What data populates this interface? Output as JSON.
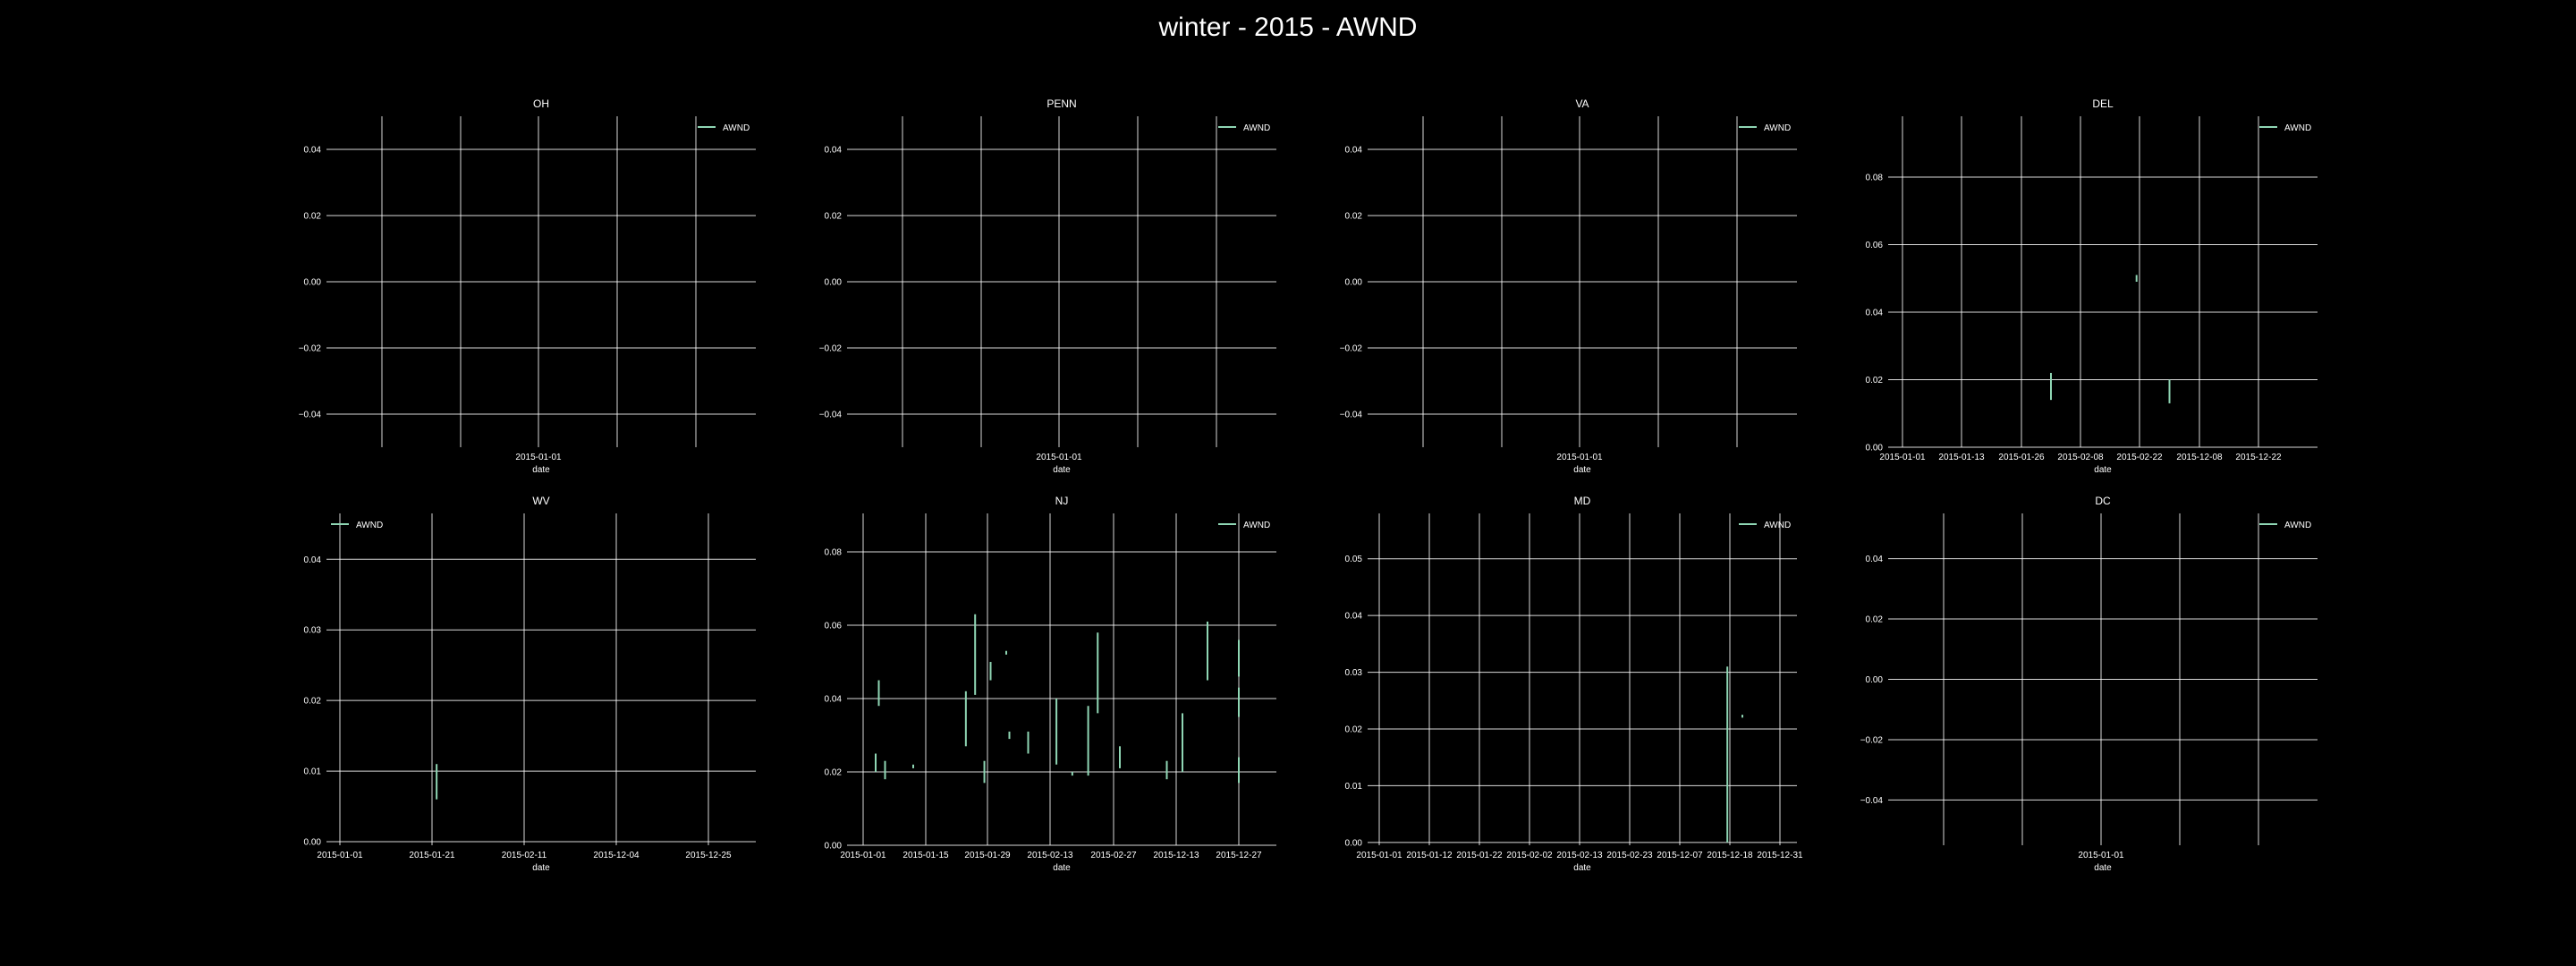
{
  "figure": {
    "title": "winter - 2015 - AWND",
    "background": "#000000",
    "grid_color": "#ffffff",
    "series_color": "#8fd6b4"
  },
  "chart_data": [
    {
      "title": "OH",
      "type": "line",
      "xlabel": "date",
      "ylabel": "",
      "x_ticks": [
        "2015-01-01"
      ],
      "y_ticks": [
        "0.04",
        "0.02",
        "0.00",
        "−0.02",
        "−0.04"
      ],
      "ylim": [
        -0.05,
        0.05
      ],
      "grid": true,
      "legend": "top-right",
      "series": [
        {
          "name": "AWND",
          "segments": []
        }
      ]
    },
    {
      "title": "PENN",
      "type": "line",
      "xlabel": "date",
      "ylabel": "",
      "x_ticks": [
        "2015-01-01"
      ],
      "y_ticks": [
        "0.04",
        "0.02",
        "0.00",
        "−0.02",
        "−0.04"
      ],
      "ylim": [
        -0.05,
        0.05
      ],
      "grid": true,
      "legend": "top-right",
      "series": [
        {
          "name": "AWND",
          "segments": []
        }
      ]
    },
    {
      "title": "VA",
      "type": "line",
      "xlabel": "date",
      "ylabel": "",
      "x_ticks": [
        "2015-01-01"
      ],
      "y_ticks": [
        "0.04",
        "0.02",
        "0.00",
        "−0.02",
        "−0.04"
      ],
      "ylim": [
        -0.05,
        0.05
      ],
      "grid": true,
      "legend": "top-right",
      "series": [
        {
          "name": "AWND",
          "segments": []
        }
      ]
    },
    {
      "title": "DEL",
      "type": "line",
      "xlabel": "date",
      "ylabel": "",
      "x_ticks": [
        "2015-01-01",
        "2015-01-13",
        "2015-01-26",
        "2015-02-08",
        "2015-02-22",
        "2015-12-08",
        "2015-12-22"
      ],
      "y_ticks": [
        "0.08",
        "0.06",
        "0.04",
        "0.02",
        "0.00"
      ],
      "ylim": [
        0,
        0.098
      ],
      "grid": true,
      "legend": "top-right",
      "series": [
        {
          "name": "AWND",
          "segments": [
            {
              "x": 2.5,
              "y": [
                0.014,
                0.022
              ]
            },
            {
              "x": 3.95,
              "y": [
                0.049,
                0.051
              ]
            },
            {
              "x": 4.5,
              "y": [
                0.013,
                0.02
              ]
            }
          ]
        }
      ]
    },
    {
      "title": "WV",
      "type": "line",
      "xlabel": "date",
      "ylabel": "",
      "x_ticks": [
        "2015-01-01",
        "2015-01-21",
        "2015-02-11",
        "2015-12-04",
        "2015-12-25"
      ],
      "y_ticks": [
        "0.04",
        "0.03",
        "0.02",
        "0.01",
        "0.00"
      ],
      "ylim": [
        -0.0005,
        0.0465
      ],
      "grid": true,
      "legend": "top-left",
      "series": [
        {
          "name": "AWND",
          "segments": [
            {
              "x": 1.05,
              "y": [
                0.006,
                0.011
              ]
            }
          ]
        }
      ]
    },
    {
      "title": "NJ",
      "type": "line",
      "xlabel": "date",
      "ylabel": "",
      "x_ticks": [
        "2015-01-01",
        "2015-01-15",
        "2015-01-29",
        "2015-02-13",
        "2015-02-27",
        "2015-12-13",
        "2015-12-27"
      ],
      "y_ticks": [
        "0.08",
        "0.06",
        "0.04",
        "0.02",
        "0.00"
      ],
      "ylim": [
        0,
        0.0905
      ],
      "grid": true,
      "legend": "top-right",
      "series": [
        {
          "name": "AWND",
          "segments": [
            {
              "x": 0.2,
              "y": [
                0.02,
                0.025
              ]
            },
            {
              "x": 0.25,
              "y": [
                0.038,
                0.045
              ]
            },
            {
              "x": 0.35,
              "y": [
                0.018,
                0.023
              ]
            },
            {
              "x": 0.8,
              "y": [
                0.021,
                0.022
              ]
            },
            {
              "x": 1.65,
              "y": [
                0.027,
                0.042
              ]
            },
            {
              "x": 1.8,
              "y": [
                0.041,
                0.063
              ]
            },
            {
              "x": 1.95,
              "y": [
                0.017,
                0.023
              ]
            },
            {
              "x": 2.05,
              "y": [
                0.045,
                0.05
              ]
            },
            {
              "x": 2.3,
              "y": [
                0.052,
                0.053
              ]
            },
            {
              "x": 2.35,
              "y": [
                0.029,
                0.031
              ]
            },
            {
              "x": 2.65,
              "y": [
                0.025,
                0.031
              ]
            },
            {
              "x": 3.1,
              "y": [
                0.022,
                0.04
              ]
            },
            {
              "x": 3.35,
              "y": [
                0.019,
                0.02
              ]
            },
            {
              "x": 3.6,
              "y": [
                0.019,
                0.038
              ]
            },
            {
              "x": 3.75,
              "y": [
                0.036,
                0.058
              ]
            },
            {
              "x": 4.1,
              "y": [
                0.021,
                0.027
              ]
            },
            {
              "x": 4.85,
              "y": [
                0.018,
                0.023
              ]
            },
            {
              "x": 5.1,
              "y": [
                0.02,
                0.036
              ]
            },
            {
              "x": 5.5,
              "y": [
                0.045,
                0.061
              ]
            },
            {
              "x": 6.05,
              "y": [
                0.046,
                0.056
              ]
            },
            {
              "x": 6.1,
              "y": [
                0.035,
                0.043
              ]
            },
            {
              "x": 6.2,
              "y": [
                0.017,
                0.024
              ]
            }
          ]
        }
      ]
    },
    {
      "title": "MD",
      "type": "line",
      "xlabel": "date",
      "ylabel": "",
      "x_ticks": [
        "2015-01-01",
        "2015-01-12",
        "2015-01-22",
        "2015-02-02",
        "2015-02-13",
        "2015-02-23",
        "2015-12-07",
        "2015-12-18",
        "2015-12-31"
      ],
      "y_ticks": [
        "0.05",
        "0.04",
        "0.03",
        "0.02",
        "0.01",
        "0.00"
      ],
      "ylim": [
        -0.0005,
        0.058
      ],
      "grid": true,
      "legend": "top-right",
      "series": [
        {
          "name": "AWND",
          "segments": [
            {
              "x": 6.95,
              "y": [
                0.0,
                0.031
              ]
            },
            {
              "x": 7.25,
              "y": [
                0.022,
                0.0225
              ]
            }
          ]
        }
      ]
    },
    {
      "title": "DC",
      "type": "line",
      "xlabel": "date",
      "ylabel": "",
      "x_ticks": [
        "2015-01-01"
      ],
      "y_ticks": [
        "0.04",
        "0.02",
        "0.00",
        "−0.02",
        "−0.04"
      ],
      "ylim": [
        -0.055,
        0.055
      ],
      "grid": true,
      "legend": "top-right",
      "series": [
        {
          "name": "AWND",
          "segments": []
        }
      ]
    }
  ]
}
